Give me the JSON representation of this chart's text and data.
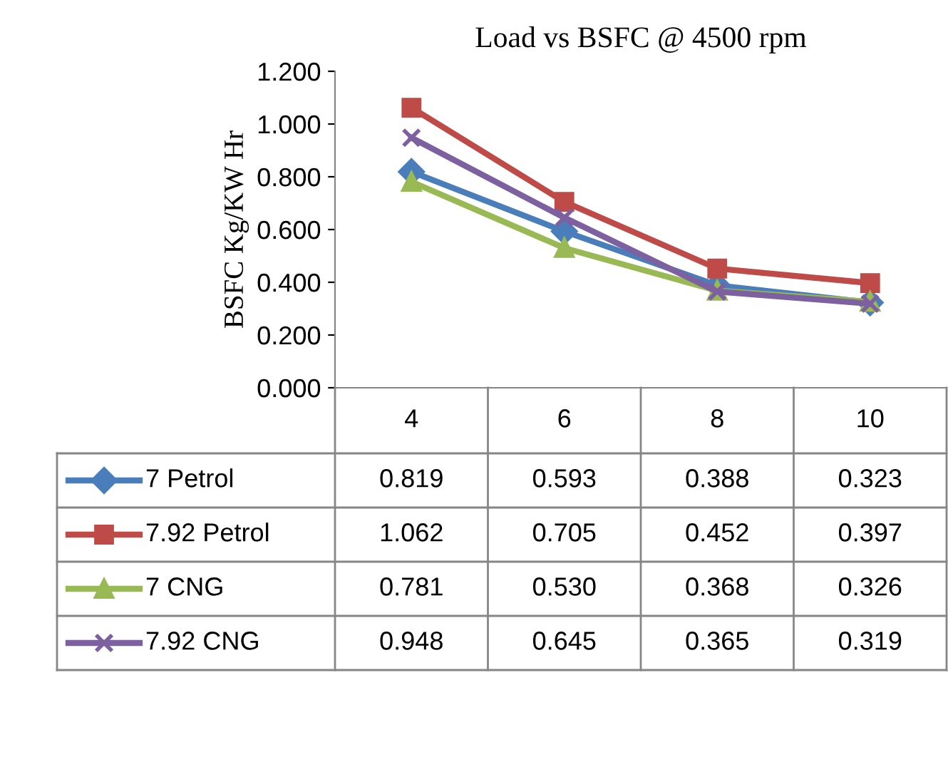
{
  "chart_data": {
    "type": "line",
    "title": "Load vs BSFC @ 4500 rpm",
    "ylabel": "BSFC Kg/KW Hr",
    "categories": [
      "4",
      "6",
      "8",
      "10"
    ],
    "series": [
      {
        "name": "7 Petrol",
        "color": "#4a7ebb",
        "marker": "diamond",
        "values": [
          0.819,
          0.593,
          0.388,
          0.323
        ],
        "value_labels": [
          "0.819",
          "0.593",
          "0.388",
          "0.323"
        ]
      },
      {
        "name": "7.92 Petrol",
        "color": "#be4b48",
        "marker": "square",
        "values": [
          1.062,
          0.705,
          0.452,
          0.397
        ],
        "value_labels": [
          "1.062",
          "0.705",
          "0.452",
          "0.397"
        ]
      },
      {
        "name": "7 CNG",
        "color": "#98b954",
        "marker": "triangle",
        "values": [
          0.781,
          0.53,
          0.368,
          0.326
        ],
        "value_labels": [
          "0.781",
          "0.530",
          "0.368",
          "0.326"
        ]
      },
      {
        "name": "7.92 CNG",
        "color": "#7d60a0",
        "marker": "cross",
        "values": [
          0.948,
          0.645,
          0.365,
          0.319
        ],
        "value_labels": [
          "0.948",
          "0.645",
          "0.365",
          "0.319"
        ]
      }
    ],
    "ylim": [
      0,
      1.2
    ],
    "yticks": [
      {
        "value": 0,
        "label": "0.000"
      },
      {
        "value": 0.2,
        "label": "0.200"
      },
      {
        "value": 0.4,
        "label": "0.400"
      },
      {
        "value": 0.6,
        "label": "0.600"
      },
      {
        "value": 0.8,
        "label": "0.800"
      },
      {
        "value": 1.0,
        "label": "1.000"
      },
      {
        "value": 1.2,
        "label": "1.200"
      }
    ],
    "grid": false,
    "legend": "bottom"
  }
}
